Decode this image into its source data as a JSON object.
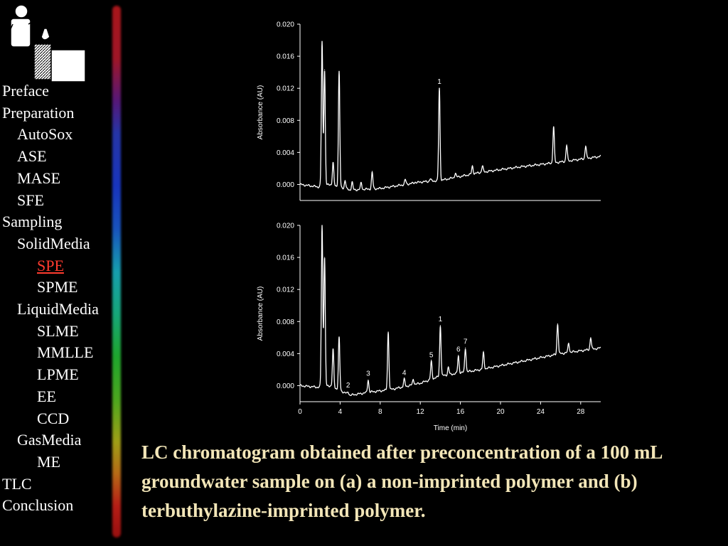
{
  "nav": {
    "items": [
      {
        "label": "Preface",
        "level": 0
      },
      {
        "label": "Preparation",
        "level": 0
      },
      {
        "label": "AutoSox",
        "level": 1
      },
      {
        "label": "ASE",
        "level": 1
      },
      {
        "label": "MASE",
        "level": 1
      },
      {
        "label": "SFE",
        "level": 1
      },
      {
        "label": "Sampling",
        "level": 0
      },
      {
        "label": "SolidMedia",
        "level": 1
      },
      {
        "label": "SPE",
        "level": 2,
        "active": true
      },
      {
        "label": "SPME",
        "level": 2
      },
      {
        "label": "LiquidMedia",
        "level": 1
      },
      {
        "label": "SLME",
        "level": 2
      },
      {
        "label": "MMLLE",
        "level": 2
      },
      {
        "label": "LPME",
        "level": 2
      },
      {
        "label": "EE",
        "level": 2
      },
      {
        "label": "CCD",
        "level": 2
      },
      {
        "label": "GasMedia",
        "level": 1
      },
      {
        "label": "ME",
        "level": 2
      },
      {
        "label": "TLC",
        "level": 0
      },
      {
        "label": "Conclusion",
        "level": 0
      }
    ],
    "active_color": "#ff3b2f"
  },
  "caption": "LC chromatogram obtained after preconcentration of a 100 mL groundwater sample on (a) a non-imprinted polymer and (b) terbuthylazine-imprinted polymer.",
  "colors": {
    "background": "#000000",
    "caption": "#f3e6b8",
    "trace": "#ffffff"
  },
  "chart_data": [
    {
      "type": "line",
      "ylabel": "Absorbance (AU)",
      "yticks": [
        "0.000",
        "0.004",
        "0.008",
        "0.012",
        "0.016",
        "0.020"
      ],
      "ylim": [
        -0.002,
        0.02
      ],
      "xlim": [
        0,
        30
      ],
      "baseline": [
        [
          0,
          0.0
        ],
        [
          1.8,
          -0.0003
        ],
        [
          3,
          0.0
        ],
        [
          5,
          -0.0007
        ],
        [
          8,
          -0.0005
        ],
        [
          12,
          0.0003
        ],
        [
          14,
          0.0005
        ],
        [
          18,
          0.0015
        ],
        [
          22,
          0.0022
        ],
        [
          26,
          0.0028
        ],
        [
          30,
          0.0035
        ]
      ],
      "peaks": [
        {
          "x": 2.2,
          "y": 0.0178
        },
        {
          "x": 2.45,
          "y": 0.0143
        },
        {
          "x": 3.3,
          "y": 0.0027
        },
        {
          "x": 3.9,
          "y": 0.0141
        },
        {
          "x": 4.5,
          "y": 0.0005
        },
        {
          "x": 5.2,
          "y": 0.0003
        },
        {
          "x": 6.1,
          "y": 0.0002
        },
        {
          "x": 7.2,
          "y": 0.0015
        },
        {
          "x": 10.5,
          "y": 0.0006
        },
        {
          "x": 11.5,
          "y": 0.0003
        },
        {
          "x": 13,
          "y": 0.0007
        },
        {
          "x": 13.9,
          "y": 0.012,
          "label": "1"
        },
        {
          "x": 15.5,
          "y": 0.0014
        },
        {
          "x": 17.2,
          "y": 0.0023
        },
        {
          "x": 18.2,
          "y": 0.0023
        },
        {
          "x": 25.3,
          "y": 0.0072
        },
        {
          "x": 26.6,
          "y": 0.0049
        },
        {
          "x": 28.5,
          "y": 0.0048
        }
      ]
    },
    {
      "type": "line",
      "ylabel": "Absorbance (AU)",
      "xlabel": "Time (min)",
      "yticks": [
        "0.000",
        "0.004",
        "0.008",
        "0.012",
        "0.016",
        "0.020"
      ],
      "xticks": [
        "0",
        "4",
        "8",
        "12",
        "16",
        "20",
        "24",
        "28"
      ],
      "ylim": [
        -0.002,
        0.02
      ],
      "xlim": [
        0,
        30
      ],
      "baseline": [
        [
          0,
          0.0
        ],
        [
          1.8,
          -0.0002
        ],
        [
          3,
          0.0
        ],
        [
          5,
          -0.0012
        ],
        [
          7,
          -0.0008
        ],
        [
          9,
          -0.0005
        ],
        [
          12,
          0.0003
        ],
        [
          14,
          0.0012
        ],
        [
          18,
          0.002
        ],
        [
          22,
          0.003
        ],
        [
          26,
          0.004
        ],
        [
          30,
          0.0047
        ]
      ],
      "peaks": [
        {
          "x": 2.2,
          "y": 0.02
        },
        {
          "x": 2.45,
          "y": 0.016
        },
        {
          "x": 3.3,
          "y": 0.0045
        },
        {
          "x": 3.9,
          "y": 0.006
        },
        {
          "x": 4.8,
          "y": -0.0008,
          "label": "2"
        },
        {
          "x": 6.8,
          "y": 0.0007,
          "label": "3"
        },
        {
          "x": 8.8,
          "y": 0.0067
        },
        {
          "x": 10.4,
          "y": 0.0008,
          "label": "4"
        },
        {
          "x": 11.3,
          "y": 0.0008
        },
        {
          "x": 13.1,
          "y": 0.003,
          "label": "5"
        },
        {
          "x": 14.0,
          "y": 0.0075,
          "label": "1"
        },
        {
          "x": 14.8,
          "y": 0.0023
        },
        {
          "x": 15.8,
          "y": 0.0037,
          "label": "6"
        },
        {
          "x": 16.5,
          "y": 0.0047,
          "label": "7"
        },
        {
          "x": 18.3,
          "y": 0.0041
        },
        {
          "x": 25.7,
          "y": 0.0077
        },
        {
          "x": 26.8,
          "y": 0.0053
        },
        {
          "x": 29.0,
          "y": 0.006
        }
      ]
    }
  ]
}
